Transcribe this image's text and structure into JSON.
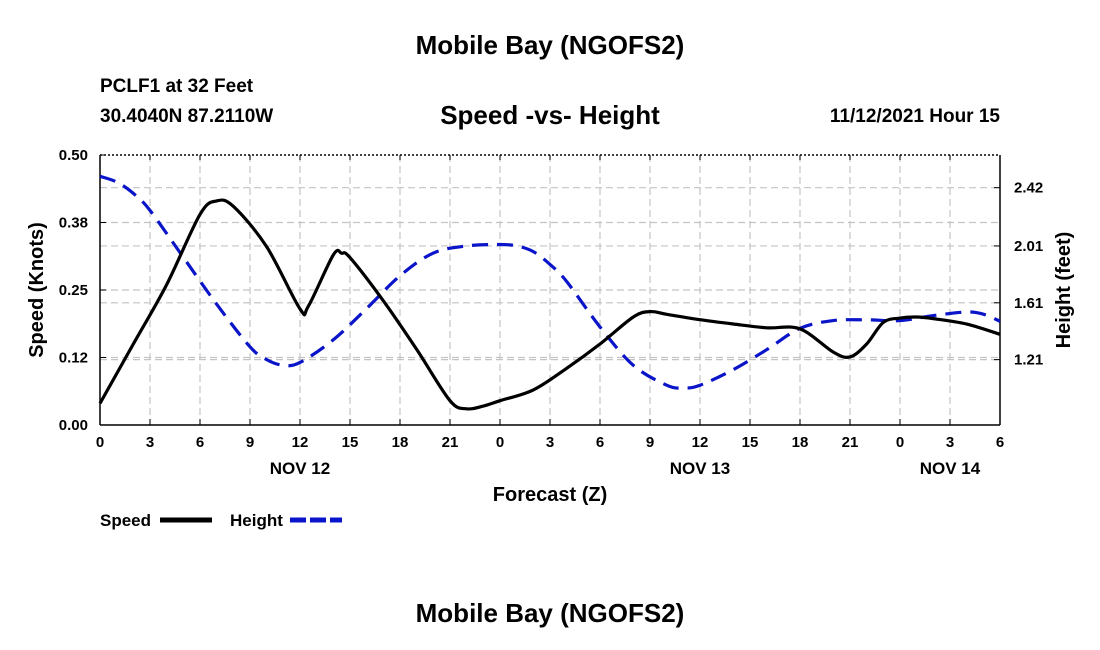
{
  "chart_data": {
    "type": "line",
    "title": "Mobile Bay (NGOFS2)",
    "subtitle": "Speed -vs- Height",
    "station": "PCLF1 at 32 Feet",
    "location": "30.4040N  87.2110W",
    "datetime": "11/12/2021 Hour 15",
    "xlabel": "Forecast (Z)",
    "ylabel_left": "Speed (Knots)",
    "ylabel_right": "Height (feet)",
    "x_range_hours": [
      0,
      54
    ],
    "y_left_range": [
      0.0,
      0.5
    ],
    "y_right_range": [
      0.75,
      2.65
    ],
    "y_left_ticks": [
      "0.00",
      "0.12",
      "0.25",
      "0.38",
      "0.50"
    ],
    "y_right_ticks": [
      "1.21",
      "1.61",
      "2.01",
      "2.42"
    ],
    "x_tick_labels": [
      "0",
      "3",
      "6",
      "9",
      "12",
      "15",
      "18",
      "21",
      "0",
      "3",
      "6",
      "9",
      "12",
      "15",
      "18",
      "21",
      "0",
      "3",
      "6"
    ],
    "date_labels": [
      {
        "label": "NOV 12",
        "hour": 12
      },
      {
        "label": "NOV 13",
        "hour": 36
      },
      {
        "label": "NOV 14",
        "hour": 51
      }
    ],
    "grid": true,
    "series": [
      {
        "name": "Speed",
        "axis": "left",
        "color": "#000000",
        "style": "solid",
        "x": [
          0,
          2,
          4,
          6,
          7,
          8,
          10,
          12,
          12.5,
          14,
          14.5,
          15,
          17,
          19,
          21,
          22,
          23,
          24,
          26,
          28,
          30,
          32,
          33,
          34,
          36,
          38,
          40,
          42,
          44,
          45,
          46,
          47,
          48,
          49,
          50,
          52,
          54
        ],
        "values": [
          0.04,
          0.15,
          0.26,
          0.39,
          0.415,
          0.405,
          0.33,
          0.215,
          0.22,
          0.315,
          0.318,
          0.31,
          0.23,
          0.14,
          0.045,
          0.03,
          0.035,
          0.045,
          0.065,
          0.105,
          0.15,
          0.2,
          0.21,
          0.205,
          0.195,
          0.187,
          0.18,
          0.178,
          0.135,
          0.126,
          0.15,
          0.19,
          0.198,
          0.2,
          0.197,
          0.187,
          0.168
        ]
      },
      {
        "name": "Height",
        "axis": "right",
        "color": "#0a14c8",
        "style": "dashed",
        "x": [
          0,
          1,
          2,
          3,
          5,
          7,
          9,
          10,
          11,
          12,
          14,
          16,
          18,
          20,
          22,
          24,
          25,
          26,
          27,
          28,
          30,
          32,
          34,
          35,
          36,
          38,
          40,
          42,
          44,
          46,
          48,
          50,
          52,
          53,
          54
        ],
        "values": [
          2.5,
          2.46,
          2.38,
          2.26,
          1.93,
          1.6,
          1.3,
          1.21,
          1.17,
          1.19,
          1.35,
          1.57,
          1.8,
          1.96,
          2.01,
          2.02,
          2.01,
          1.97,
          1.88,
          1.76,
          1.44,
          1.17,
          1.03,
          1.01,
          1.03,
          1.14,
          1.28,
          1.43,
          1.485,
          1.49,
          1.485,
          1.52,
          1.545,
          1.53,
          1.48
        ]
      }
    ],
    "legend": [
      {
        "label": "Speed",
        "color": "#000000",
        "style": "solid"
      },
      {
        "label": "Height",
        "color": "#0a14c8",
        "style": "dashed"
      }
    ],
    "legend_position": "bottom-left"
  }
}
